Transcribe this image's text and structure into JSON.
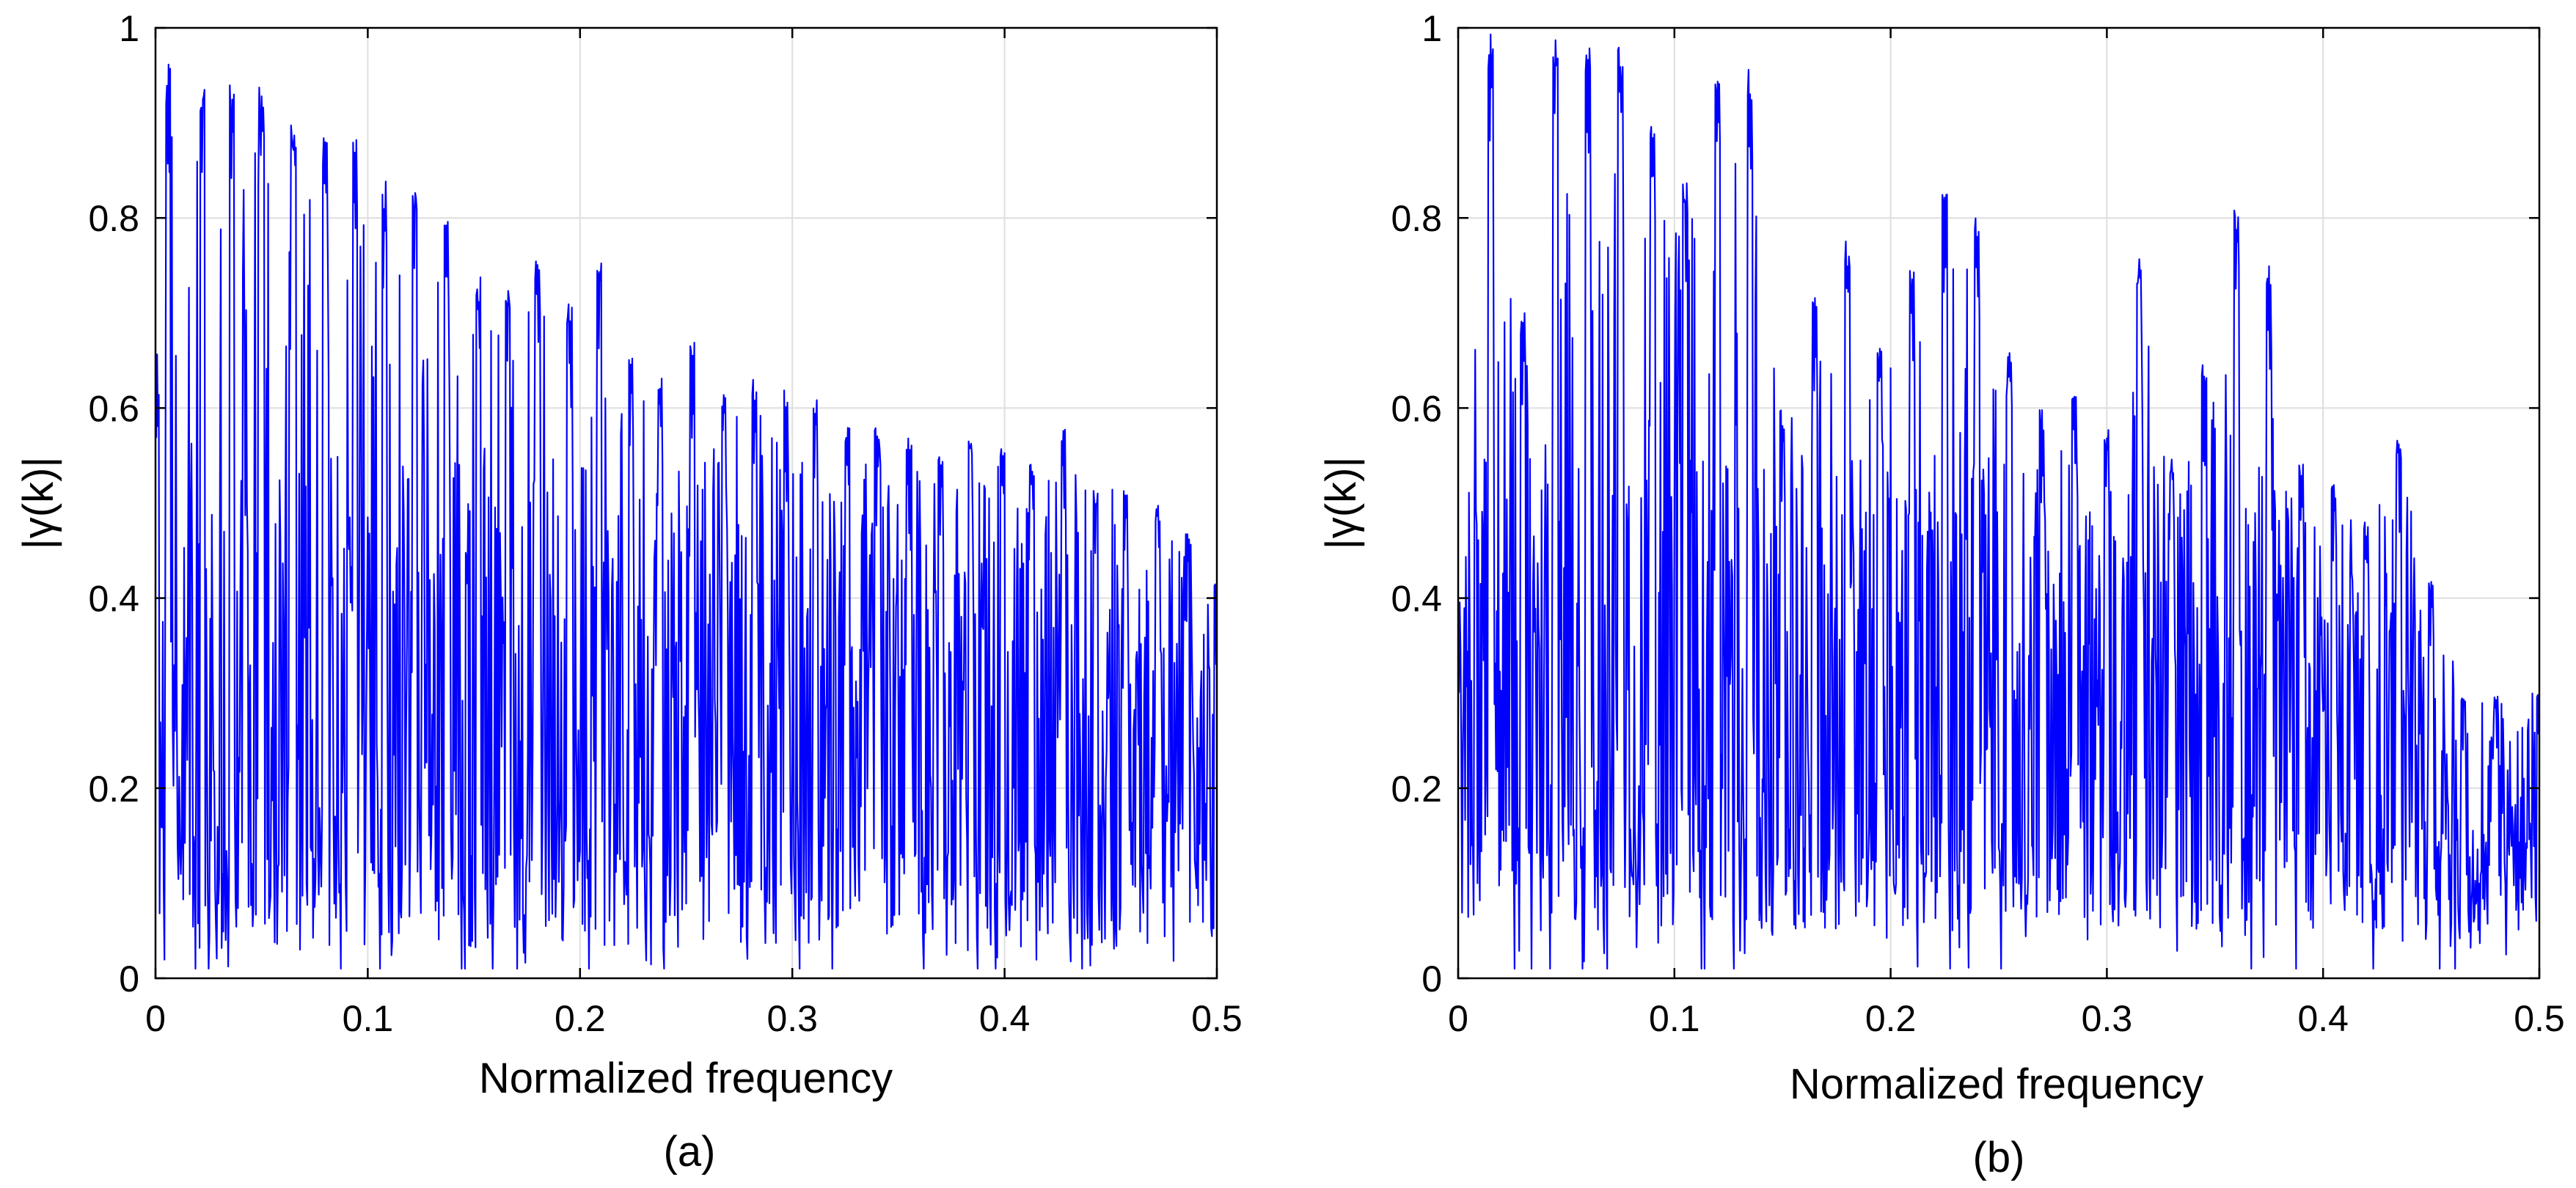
{
  "chart_data": [
    {
      "id": "a",
      "type": "line",
      "caption": "(a)",
      "xlabel": "Normalized frequency",
      "ylabel": "|γ(k)|",
      "xlim": [
        0,
        0.5
      ],
      "ylim": [
        0,
        1
      ],
      "xticks": [
        "0",
        "0.1",
        "0.2",
        "0.3",
        "0.4",
        "0.5"
      ],
      "yticks": [
        "0",
        "0.2",
        "0.4",
        "0.6",
        "0.8",
        "1"
      ],
      "grid": true,
      "series": [
        {
          "name": "|γ(k)|",
          "color": "#0000ff",
          "samples": 1300,
          "envelope_peaks": [
            [
              0.0,
              0.67
            ],
            [
              0.006,
              0.97
            ],
            [
              0.022,
              0.95
            ],
            [
              0.036,
              0.94
            ],
            [
              0.05,
              0.94
            ],
            [
              0.065,
              0.91
            ],
            [
              0.08,
              0.89
            ],
            [
              0.094,
              0.89
            ],
            [
              0.108,
              0.84
            ],
            [
              0.122,
              0.84
            ],
            [
              0.137,
              0.81
            ],
            [
              0.152,
              0.74
            ],
            [
              0.166,
              0.73
            ],
            [
              0.18,
              0.76
            ],
            [
              0.195,
              0.71
            ],
            [
              0.209,
              0.76
            ],
            [
              0.224,
              0.66
            ],
            [
              0.238,
              0.64
            ],
            [
              0.253,
              0.68
            ],
            [
              0.268,
              0.62
            ],
            [
              0.282,
              0.63
            ],
            [
              0.297,
              0.62
            ],
            [
              0.311,
              0.61
            ],
            [
              0.326,
              0.58
            ],
            [
              0.34,
              0.58
            ],
            [
              0.355,
              0.57
            ],
            [
              0.37,
              0.55
            ],
            [
              0.384,
              0.57
            ],
            [
              0.399,
              0.56
            ],
            [
              0.413,
              0.55
            ],
            [
              0.428,
              0.58
            ],
            [
              0.443,
              0.52
            ],
            [
              0.457,
              0.52
            ],
            [
              0.472,
              0.5
            ],
            [
              0.486,
              0.47
            ],
            [
              0.5,
              0.42
            ]
          ],
          "baseline_range": [
            0.03,
            0.3
          ]
        }
      ]
    },
    {
      "id": "b",
      "type": "line",
      "caption": "(b)",
      "xlabel": "Normalized frequency",
      "ylabel": "|γ(k)|",
      "xlim": [
        0,
        0.5
      ],
      "ylim": [
        0,
        1
      ],
      "xticks": [
        "0",
        "0.1",
        "0.2",
        "0.3",
        "0.4",
        "0.5"
      ],
      "yticks": [
        "0",
        "0.2",
        "0.4",
        "0.6",
        "0.8",
        "1"
      ],
      "grid": true,
      "series": [
        {
          "name": "|γ(k)|",
          "color": "#0000ff",
          "samples": 1400,
          "envelope_peaks": [
            [
              0.0,
              0.4
            ],
            [
              0.015,
              1.0
            ],
            [
              0.03,
              0.7
            ],
            [
              0.045,
              0.99
            ],
            [
              0.06,
              0.98
            ],
            [
              0.075,
              0.98
            ],
            [
              0.09,
              0.9
            ],
            [
              0.105,
              0.85
            ],
            [
              0.12,
              0.97
            ],
            [
              0.135,
              0.96
            ],
            [
              0.15,
              0.6
            ],
            [
              0.165,
              0.72
            ],
            [
              0.18,
              0.78
            ],
            [
              0.195,
              0.67
            ],
            [
              0.21,
              0.75
            ],
            [
              0.225,
              0.83
            ],
            [
              0.24,
              0.8
            ],
            [
              0.255,
              0.66
            ],
            [
              0.27,
              0.6
            ],
            [
              0.285,
              0.62
            ],
            [
              0.3,
              0.58
            ],
            [
              0.315,
              0.76
            ],
            [
              0.33,
              0.55
            ],
            [
              0.345,
              0.65
            ],
            [
              0.36,
              0.82
            ],
            [
              0.375,
              0.75
            ],
            [
              0.39,
              0.55
            ],
            [
              0.405,
              0.52
            ],
            [
              0.42,
              0.48
            ],
            [
              0.435,
              0.57
            ],
            [
              0.45,
              0.42
            ],
            [
              0.465,
              0.3
            ],
            [
              0.48,
              0.3
            ],
            [
              0.5,
              0.3
            ]
          ],
          "baseline_range": [
            0.05,
            0.3
          ]
        }
      ]
    }
  ]
}
